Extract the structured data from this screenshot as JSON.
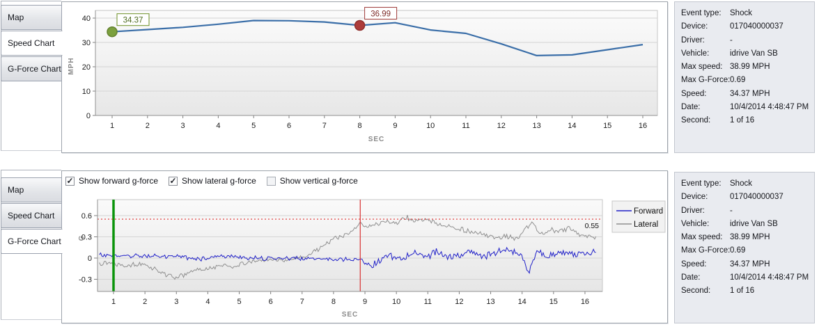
{
  "tabs": [
    {
      "label": "Map"
    },
    {
      "label": "Speed Chart"
    },
    {
      "label": "G-Force Chart"
    }
  ],
  "top_panel": {
    "active_tab": "Speed Chart"
  },
  "bottom_panel": {
    "active_tab": "G-Force Chart",
    "checkboxes": [
      {
        "label": "Show forward g-force",
        "checked": true
      },
      {
        "label": "Show lateral g-force",
        "checked": true
      },
      {
        "label": "Show vertical g-force",
        "checked": false
      }
    ]
  },
  "event_details": [
    {
      "label": "Event type:",
      "value": "Shock"
    },
    {
      "label": "Device:",
      "value": "017040000037"
    },
    {
      "label": "Driver:",
      "value": "-"
    },
    {
      "label": "Vehicle:",
      "value": "idrive Van SB"
    },
    {
      "label": "Max speed:",
      "value": "38.99 MPH"
    },
    {
      "label": "Max G-Force:",
      "value": "0.69"
    },
    {
      "label": "Speed:",
      "value": "34.37 MPH"
    },
    {
      "label": "Date:",
      "value": "10/4/2014 4:48:47 PM"
    },
    {
      "label": "Second:",
      "value": "1 of 16"
    }
  ],
  "legend": [
    {
      "label": "Forward",
      "color": "#1F1FC8"
    },
    {
      "label": "Lateral",
      "color": "#8F8F8F"
    }
  ],
  "chart_data": [
    {
      "type": "line",
      "name": "speed-chart",
      "xlabel": "SEC",
      "ylabel": "MPH",
      "x": [
        1,
        2,
        3,
        4,
        5,
        6,
        7,
        8,
        9,
        10,
        11,
        12,
        13,
        14,
        15,
        16
      ],
      "values": [
        34.37,
        35.3,
        36.2,
        37.5,
        38.99,
        38.9,
        38.4,
        36.99,
        38.1,
        35.1,
        33.7,
        29.4,
        24.6,
        24.9,
        27.0,
        29.1
      ],
      "ylim": [
        0,
        42
      ],
      "yticks": [
        0,
        10,
        20,
        30,
        40
      ],
      "line_color": "#3A6EA8",
      "markers": [
        {
          "x": 1,
          "label": "34.37",
          "dot_fill": "#7BA03E",
          "dot_stroke": "#64822F",
          "box_border": "#6B8E23",
          "text_color": "#4E6B1F"
        },
        {
          "x": 8,
          "label": "36.99",
          "dot_fill": "#AD3C3A",
          "dot_stroke": "#8F2F2D",
          "box_border": "#9E3A38",
          "text_color": "#7E2B28"
        }
      ]
    },
    {
      "type": "line",
      "name": "gforce-chart",
      "xlabel": "SEC",
      "ylabel": "G",
      "xticks": [
        1,
        2,
        3,
        4,
        5,
        6,
        7,
        8,
        9,
        10,
        11,
        12,
        13,
        14,
        15,
        16
      ],
      "ylim": [
        -0.46,
        0.82
      ],
      "yticks": [
        {
          "v": 0.6,
          "label": "0.6"
        },
        {
          "v": 0.3,
          "label": "0.3"
        },
        {
          "v": 0,
          "label": "0"
        },
        {
          "v": -0.3,
          "label": "-0.3"
        }
      ],
      "threshold": {
        "value": 0.55,
        "label": "0.55",
        "color": "#E03030"
      },
      "vlines": [
        {
          "x": 1,
          "color": "#0A940A",
          "width": 3.5,
          "name": "current-second-marker"
        },
        {
          "x": 8.85,
          "color": "#D83030",
          "width": 1.2,
          "name": "shock-event-marker"
        }
      ],
      "sample_step": 0.04,
      "x_range": [
        0.55,
        16.35
      ],
      "seed": 13,
      "series": [
        {
          "name": "Forward",
          "color": "#1F1FC8",
          "trend": [
            [
              0.5,
              0.04
            ],
            [
              1,
              0.035
            ],
            [
              2,
              0.03
            ],
            [
              3,
              0.025
            ],
            [
              3.7,
              -0.02
            ],
            [
              4.2,
              0.03
            ],
            [
              5,
              0.015
            ],
            [
              5.5,
              0
            ],
            [
              6,
              -0.01
            ],
            [
              6.5,
              0
            ],
            [
              7,
              -0.01
            ],
            [
              7.5,
              0
            ],
            [
              8,
              -0.02
            ],
            [
              8.5,
              -0.01
            ],
            [
              8.9,
              -0.04
            ],
            [
              9.2,
              -0.1
            ],
            [
              9.5,
              -0.02
            ],
            [
              9.8,
              0.03
            ],
            [
              10.2,
              0
            ],
            [
              10.6,
              0.07
            ],
            [
              11,
              0.02
            ],
            [
              11.3,
              0.1
            ],
            [
              11.6,
              0
            ],
            [
              12,
              0.04
            ],
            [
              12.4,
              0.1
            ],
            [
              12.8,
              0.02
            ],
            [
              13.2,
              0.09
            ],
            [
              13.6,
              0.1
            ],
            [
              14,
              0.04
            ],
            [
              14.2,
              -0.2
            ],
            [
              14.45,
              0.1
            ],
            [
              14.8,
              0.02
            ],
            [
              15.2,
              0.1
            ],
            [
              15.6,
              0.05
            ],
            [
              16.35,
              0.08
            ]
          ],
          "noise_amp": [
            [
              0.5,
              0.035
            ],
            [
              8.8,
              0.035
            ],
            [
              9.1,
              0.06
            ],
            [
              16.35,
              0.055
            ]
          ]
        },
        {
          "name": "Lateral",
          "color": "#8F8F8F",
          "trend": [
            [
              0.5,
              -0.06
            ],
            [
              1,
              -0.07
            ],
            [
              1.4,
              -0.1
            ],
            [
              1.8,
              -0.09
            ],
            [
              2.2,
              -0.13
            ],
            [
              2.6,
              -0.22
            ],
            [
              2.9,
              -0.27
            ],
            [
              3.2,
              -0.25
            ],
            [
              3.6,
              -0.17
            ],
            [
              4,
              -0.16
            ],
            [
              4.4,
              -0.1
            ],
            [
              4.8,
              -0.12
            ],
            [
              5.2,
              -0.07
            ],
            [
              5.6,
              -0.04
            ],
            [
              6,
              -0.02
            ],
            [
              6.4,
              -0.03
            ],
            [
              6.8,
              -0.01
            ],
            [
              7.1,
              0.02
            ],
            [
              7.4,
              0.1
            ],
            [
              7.7,
              0.18
            ],
            [
              8,
              0.28
            ],
            [
              8.3,
              0.3
            ],
            [
              8.6,
              0.38
            ],
            [
              8.85,
              0.5
            ],
            [
              9.1,
              0.44
            ],
            [
              9.4,
              0.48
            ],
            [
              9.7,
              0.52
            ],
            [
              10,
              0.5
            ],
            [
              10.3,
              0.58
            ],
            [
              10.6,
              0.52
            ],
            [
              10.9,
              0.55
            ],
            [
              11.2,
              0.5
            ],
            [
              11.6,
              0.45
            ],
            [
              12,
              0.42
            ],
            [
              12.4,
              0.36
            ],
            [
              12.8,
              0.33
            ],
            [
              13.2,
              0.28
            ],
            [
              13.6,
              0.3
            ],
            [
              13.9,
              0.26
            ],
            [
              14.1,
              0.42
            ],
            [
              14.3,
              0.5
            ],
            [
              14.6,
              0.34
            ],
            [
              14.9,
              0.4
            ],
            [
              15.2,
              0.38
            ],
            [
              15.5,
              0.42
            ],
            [
              15.8,
              0.33
            ],
            [
              16.35,
              0.3
            ]
          ],
          "noise_amp": [
            [
              0.5,
              0.045
            ],
            [
              6,
              0.03
            ],
            [
              7.5,
              0.04
            ],
            [
              16.35,
              0.05
            ]
          ]
        }
      ]
    }
  ],
  "colors": {
    "panel_details_bg": "#E9EBF0",
    "plot_grid": "#D4D4D4",
    "axis": "#909090",
    "axis_label": "#8A8A8A",
    "tab_border": "#9AA1AE"
  }
}
